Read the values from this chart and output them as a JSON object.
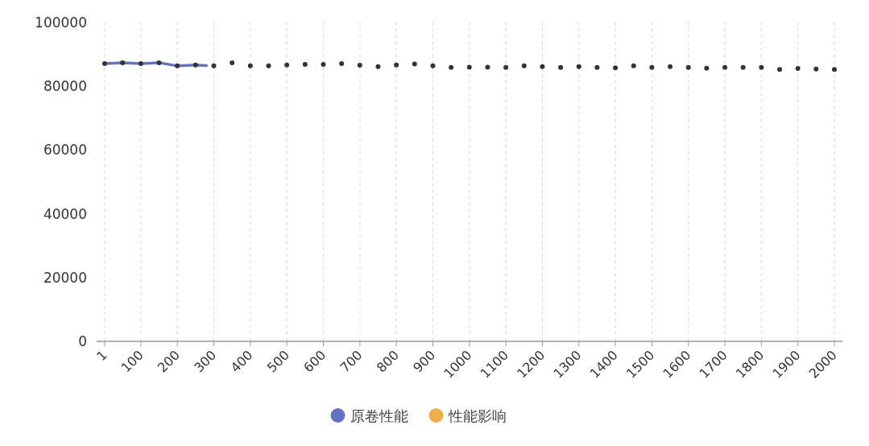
{
  "chart_data": {
    "type": "line",
    "x": [
      1,
      50,
      100,
      150,
      200,
      250,
      280
    ],
    "xlim": [
      -21,
      2022
    ],
    "xticks": [
      1,
      100,
      200,
      300,
      400,
      500,
      600,
      700,
      800,
      900,
      1000,
      1100,
      1200,
      1300,
      1400,
      1500,
      1600,
      1700,
      1800,
      1900,
      2000
    ],
    "ylim": [
      0,
      100000
    ],
    "yticks": [
      0,
      20000,
      40000,
      60000,
      80000,
      100000
    ],
    "grid": "x",
    "legend": "bottom",
    "series": [
      {
        "name": "原卷性能",
        "color": "#6473c6",
        "values": [
          87100,
          87400,
          87100,
          87400,
          86400,
          86700,
          86500
        ]
      },
      {
        "name": "性能影响",
        "color": "#f0ad4c",
        "values": [
          null,
          null,
          null,
          null,
          null,
          null,
          null
        ]
      },
      {
        "color": "#333333",
        "type": "scatter",
        "marker": "circle",
        "x": [
          1,
          50,
          100,
          150,
          200,
          250,
          300,
          350,
          400,
          450,
          500,
          550,
          600,
          650,
          700,
          750,
          800,
          850,
          900,
          950,
          1000,
          1050,
          1100,
          1150,
          1200,
          1250,
          1300,
          1350,
          1400,
          1450,
          1500,
          1550,
          1600,
          1650,
          1700,
          1750,
          1800,
          1850,
          1900,
          1950,
          2000
        ],
        "values": [
          87100,
          87400,
          87100,
          87400,
          86400,
          86700,
          86400,
          87400,
          86400,
          86400,
          86700,
          86900,
          86900,
          87100,
          86600,
          86200,
          86700,
          87000,
          86400,
          85900,
          86000,
          86000,
          85900,
          86400,
          86200,
          85900,
          86200,
          85900,
          85800,
          86400,
          85900,
          86200,
          85900,
          85700,
          85900,
          85900,
          85900,
          85300,
          85600,
          85400,
          85300
        ]
      }
    ]
  }
}
